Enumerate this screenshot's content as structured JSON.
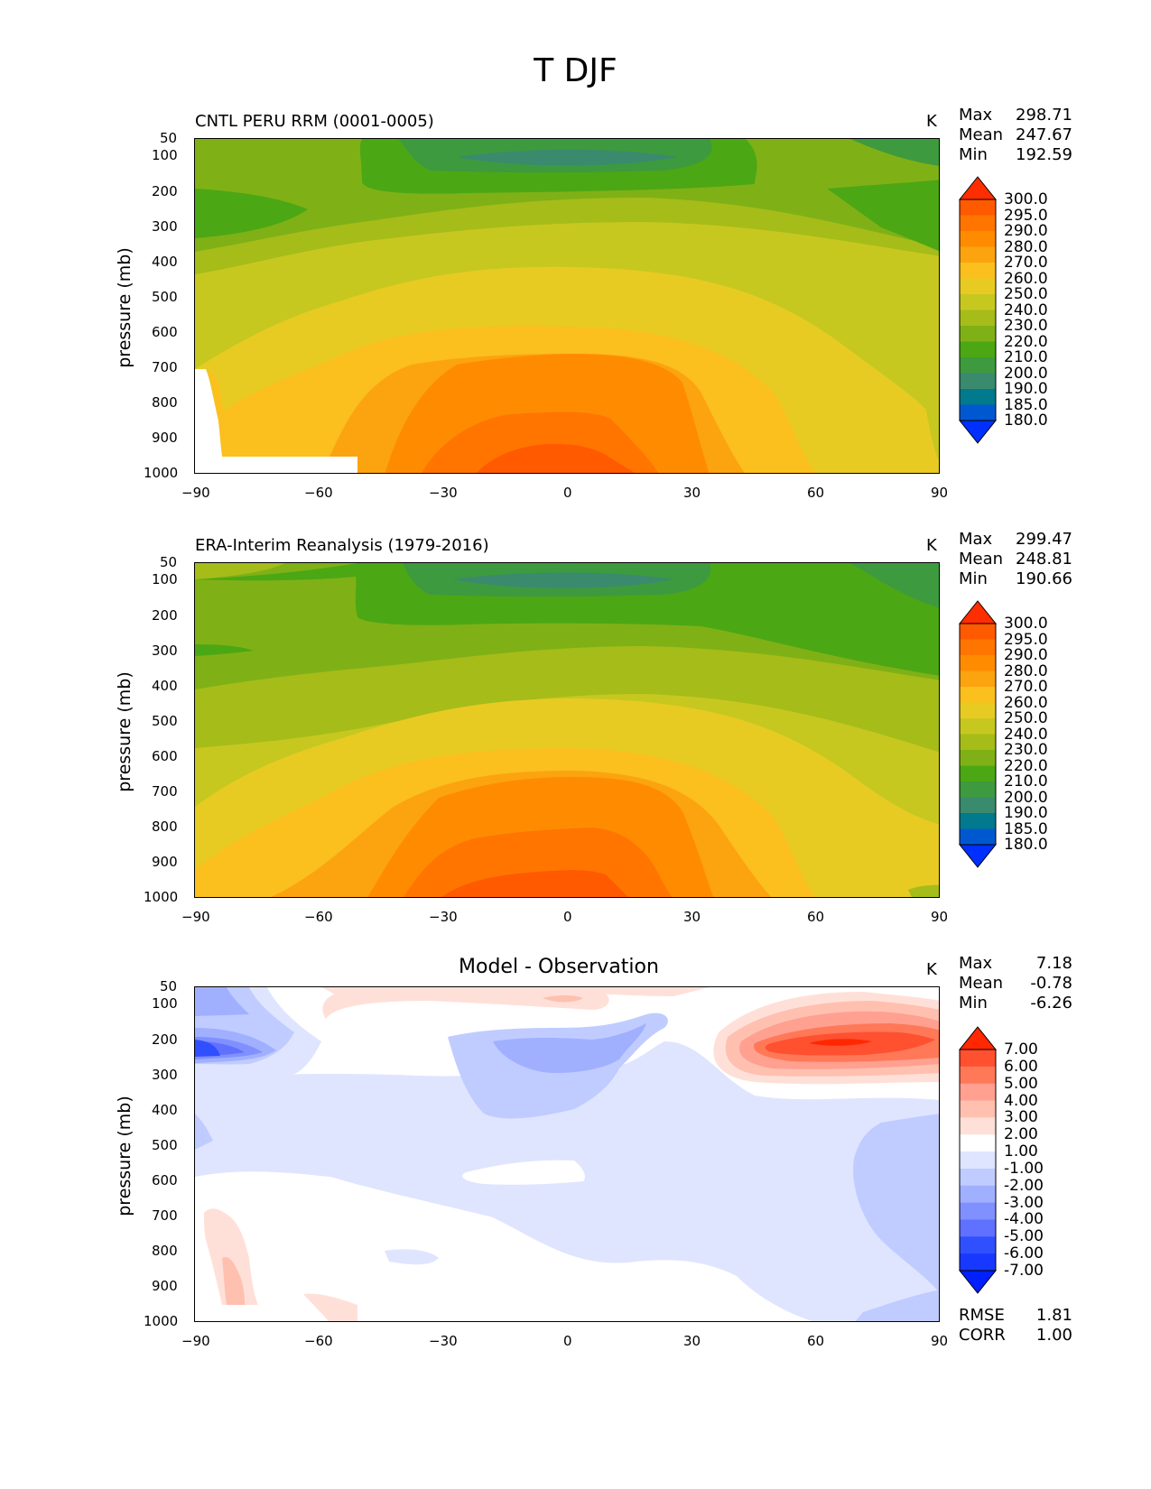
{
  "figure_title": "T DJF",
  "units": "K",
  "ylabel": "pressure (mb)",
  "chart_data": [
    {
      "type": "contourf",
      "title": "CNTL PERU RRM (0001-0005)",
      "units": "K",
      "xlabel": "",
      "ylabel": "pressure (mb)",
      "x_ticks": [
        "−90",
        "−60",
        "−30",
        "0",
        "30",
        "60",
        "90"
      ],
      "y_ticks": [
        "50",
        "100",
        "200",
        "300",
        "400",
        "500",
        "600",
        "700",
        "800",
        "900",
        "1000"
      ],
      "xlim": [
        -90,
        90
      ],
      "ylim": [
        1000,
        50
      ],
      "stats": {
        "max_label": "Max",
        "max": "298.71",
        "mean_label": "Mean",
        "mean": "247.67",
        "min_label": "Min",
        "min": "192.59"
      },
      "colorbar_levels": [
        "300.0",
        "295.0",
        "290.0",
        "280.0",
        "270.0",
        "260.0",
        "250.0",
        "240.0",
        "230.0",
        "220.0",
        "210.0",
        "200.0",
        "190.0",
        "185.0",
        "180.0"
      ]
    },
    {
      "type": "contourf",
      "title": "ERA-Interim Reanalysis (1979-2016)",
      "units": "K",
      "xlabel": "",
      "ylabel": "pressure (mb)",
      "x_ticks": [
        "−90",
        "−60",
        "−30",
        "0",
        "30",
        "60",
        "90"
      ],
      "y_ticks": [
        "50",
        "100",
        "200",
        "300",
        "400",
        "500",
        "600",
        "700",
        "800",
        "900",
        "1000"
      ],
      "xlim": [
        -90,
        90
      ],
      "ylim": [
        1000,
        50
      ],
      "stats": {
        "max_label": "Max",
        "max": "299.47",
        "mean_label": "Mean",
        "mean": "248.81",
        "min_label": "Min",
        "min": "190.66"
      },
      "colorbar_levels": [
        "300.0",
        "295.0",
        "290.0",
        "280.0",
        "270.0",
        "260.0",
        "250.0",
        "240.0",
        "230.0",
        "220.0",
        "210.0",
        "200.0",
        "190.0",
        "185.0",
        "180.0"
      ]
    },
    {
      "type": "contourf",
      "title": "Model - Observation",
      "units": "K",
      "xlabel": "",
      "ylabel": "pressure (mb)",
      "x_ticks": [
        "−90",
        "−60",
        "−30",
        "0",
        "30",
        "60",
        "90"
      ],
      "y_ticks": [
        "50",
        "100",
        "200",
        "300",
        "400",
        "500",
        "600",
        "700",
        "800",
        "900",
        "1000"
      ],
      "xlim": [
        -90,
        90
      ],
      "ylim": [
        1000,
        50
      ],
      "stats": {
        "max_label": "Max",
        "max": "7.18",
        "mean_label": "Mean",
        "mean": "-0.78",
        "min_label": "Min",
        "min": "-6.26"
      },
      "colorbar_levels": [
        "7.00",
        "6.00",
        "5.00",
        "4.00",
        "3.00",
        "2.00",
        "1.00",
        "-1.00",
        "-2.00",
        "-3.00",
        "-4.00",
        "-5.00",
        "-6.00",
        "-7.00"
      ],
      "extra_stats": {
        "rmse_label": "RMSE",
        "rmse": "1.81",
        "corr_label": "CORR",
        "corr": "1.00"
      }
    }
  ],
  "colors": {
    "temp": [
      "#ff2e00",
      "#ff5a00",
      "#ff7500",
      "#ff8c00",
      "#fca310",
      "#fbbf1e",
      "#e7cb23",
      "#c7c81f",
      "#a6bc19",
      "#7fb116",
      "#4ca714",
      "#3e9a3e",
      "#3a8a6e",
      "#007a8c",
      "#0058d0",
      "#0030ff"
    ],
    "diff": [
      "#ff2800",
      "#ff5030",
      "#ff7858",
      "#ffa090",
      "#ffc0b0",
      "#ffe0d8",
      "#ffffff",
      "#dfe5ff",
      "#c0ccff",
      "#a0b0ff",
      "#8090ff",
      "#6070ff",
      "#3050ff",
      "#1838ff",
      "#0020ff"
    ]
  }
}
